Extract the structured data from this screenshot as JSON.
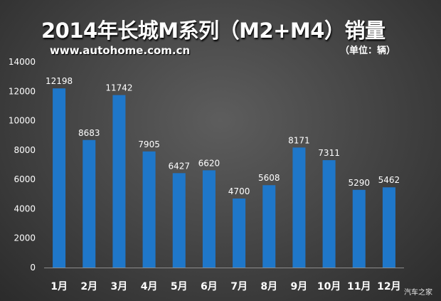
{
  "header": {
    "title": "2014年长城M系列（M2+M4）销量",
    "site": "www.autohome.com.cn",
    "unit": "（单位：辆）"
  },
  "watermark": "汽车之家",
  "colors": {
    "bar": "#1f77c9",
    "axis_text": "#ffffff",
    "label_text": "#ffffff"
  },
  "chart_data": {
    "type": "bar",
    "title": "2014年长城M系列（M2+M4）销量",
    "categories": [
      "1月",
      "2月",
      "3月",
      "4月",
      "5月",
      "6月",
      "7月",
      "8月",
      "9月",
      "10月",
      "11月",
      "12月"
    ],
    "values": [
      12198,
      8683,
      11742,
      7905,
      6427,
      6620,
      4700,
      5608,
      8171,
      7311,
      5290,
      5462
    ],
    "ylim": [
      0,
      14000
    ],
    "yticks": [
      0,
      2000,
      4000,
      6000,
      8000,
      10000,
      12000,
      14000
    ],
    "grid": false,
    "legend": "none",
    "data_labels": true
  }
}
